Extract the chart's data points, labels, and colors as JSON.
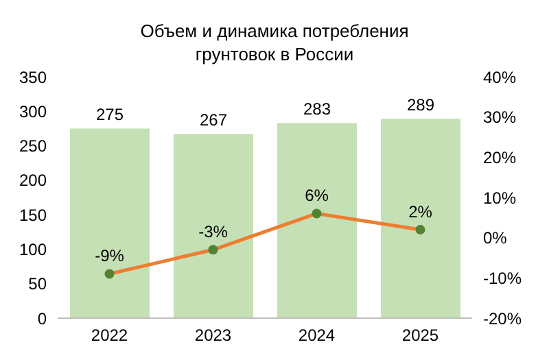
{
  "chart_data": {
    "type": "bar",
    "title": "Объем и динамика потребления  грунтовок в России",
    "categories": [
      "2022",
      "2023",
      "2024",
      "2025"
    ],
    "series": [
      {
        "color": "#c5e0b4",
        "values": [
          275,
          267,
          283,
          289
        ],
        "value_labels": [
          "275",
          "267",
          "283",
          "289"
        ]
      },
      {
        "type": "line",
        "axis": "y2",
        "color": "#ed7d31",
        "colors": [
          "#548235",
          "#548235",
          "#548235",
          "#548235"
        ],
        "values": [
          -9,
          -3,
          6,
          2
        ],
        "value_labels": [
          "-9%",
          "-3%",
          "6%",
          "2%"
        ]
      }
    ],
    "ylim": [
      0,
      350
    ],
    "yticks": [
      0,
      50,
      100,
      150,
      200,
      250,
      300,
      350
    ],
    "y2lim": [
      -20,
      40
    ],
    "y2ticks": [
      {
        "value": -20,
        "label": "-20%"
      },
      {
        "value": -10,
        "label": "-10%"
      },
      {
        "value": 0,
        "label": "0%"
      },
      {
        "value": 10,
        "label": "10%"
      },
      {
        "value": 20,
        "label": "20%"
      },
      {
        "value": 30,
        "label": "30%"
      },
      {
        "value": 40,
        "label": "40%"
      }
    ],
    "marker": "circle",
    "grid": false,
    "legend": false
  }
}
